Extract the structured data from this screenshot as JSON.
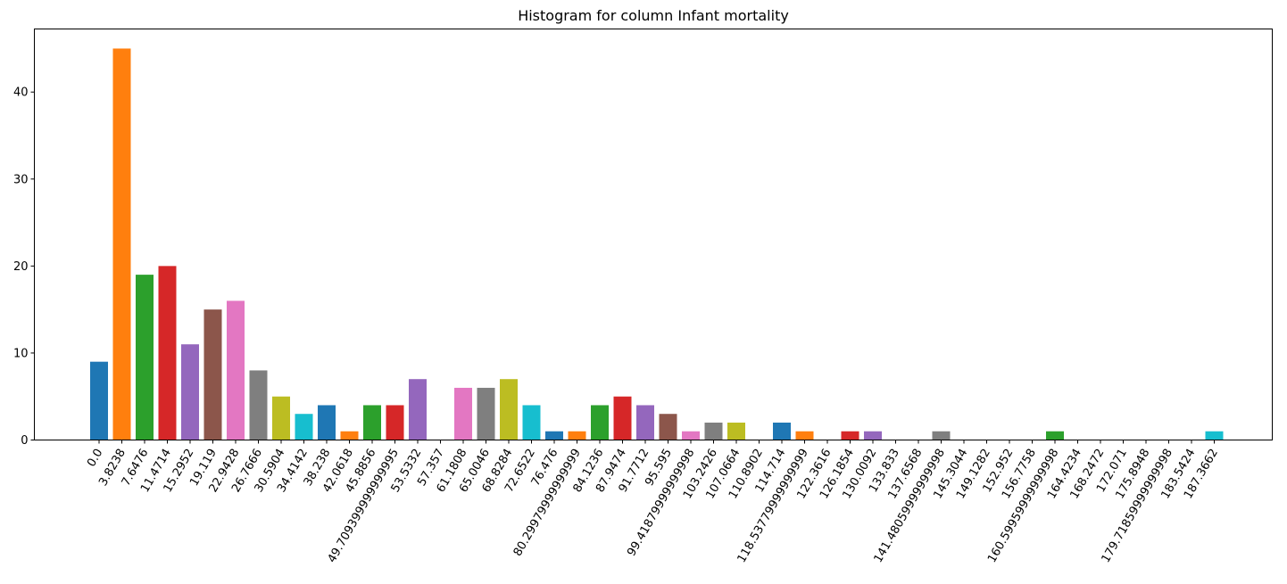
{
  "chart_data": {
    "type": "bar",
    "title": "Histogram for column Infant mortality",
    "xlabel": "",
    "ylabel": "",
    "ylim": [
      0,
      47.25
    ],
    "yticks": [
      0,
      10,
      20,
      30,
      40
    ],
    "grid": false,
    "colors": [
      "#1f77b4",
      "#ff7f0e",
      "#2ca02c",
      "#d62728",
      "#9467bd",
      "#8c564b",
      "#e377c2",
      "#7f7f7f",
      "#bcbd22",
      "#17becf"
    ],
    "categories": [
      "0.0",
      "3.8238",
      "7.6476",
      "11.4714",
      "15.2952",
      "19.119",
      "22.9428",
      "26.7666",
      "30.5904",
      "34.4142",
      "38.238",
      "42.0618",
      "45.8856",
      "49.709399999999995",
      "53.5332",
      "57.357",
      "61.1808",
      "65.0046",
      "68.8284",
      "72.6522",
      "76.476",
      "80.29979999999999",
      "84.1236",
      "87.9474",
      "91.7712",
      "95.595",
      "99.41879999999998",
      "103.2426",
      "107.0664",
      "110.8902",
      "114.714",
      "118.53779999999999",
      "122.3616",
      "126.1854",
      "130.0092",
      "133.833",
      "137.6568",
      "141.48059999999998",
      "145.3044",
      "149.1282",
      "152.952",
      "156.7758",
      "160.59959999999998",
      "164.4234",
      "168.2472",
      "172.071",
      "175.8948",
      "179.71859999999998",
      "183.5424",
      "187.3662"
    ],
    "values": [
      9,
      45,
      19,
      20,
      11,
      15,
      16,
      8,
      5,
      3,
      4,
      1,
      4,
      4,
      7,
      0,
      6,
      6,
      7,
      4,
      1,
      1,
      4,
      5,
      4,
      3,
      1,
      2,
      2,
      0,
      2,
      1,
      0,
      1,
      1,
      0,
      0,
      1,
      0,
      0,
      0,
      0,
      1,
      0,
      0,
      0,
      0,
      0,
      0,
      1
    ]
  }
}
